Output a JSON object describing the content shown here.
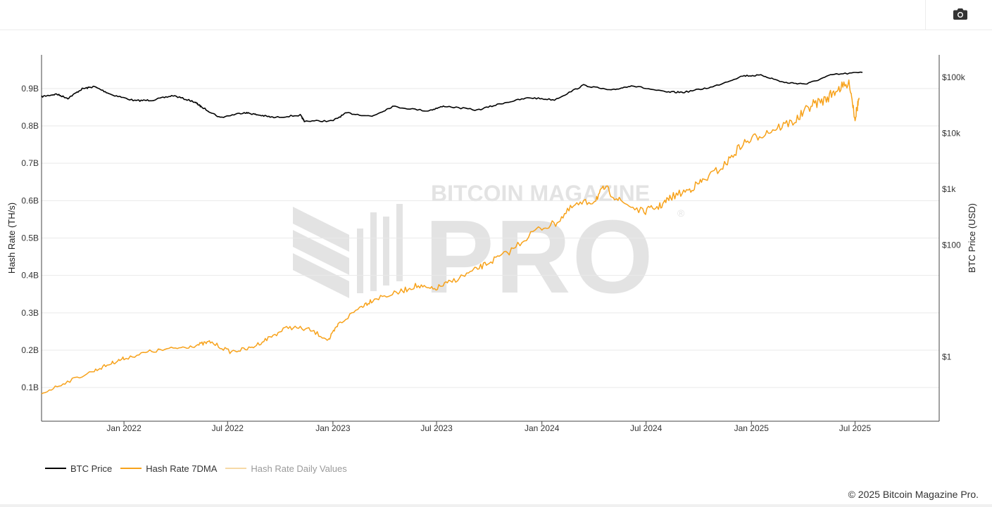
{
  "toolbar": {
    "camera_icon": "camera-icon"
  },
  "watermark": {
    "line1": "BITCOIN MAGAZINE",
    "line2": "PRO",
    "reg": "®"
  },
  "legend": [
    {
      "label": "BTC Price",
      "color": "#000000"
    },
    {
      "label": "Hash Rate 7DMA",
      "color": "#f7a21b"
    },
    {
      "label": "Hash Rate Daily Values",
      "color": "#f6d9a6"
    }
  ],
  "footer": {
    "copyright": "© 2025 Bitcoin Magazine Pro."
  },
  "chart_data": {
    "type": "line",
    "title": "",
    "xlabel": "",
    "ylabel_left": "Hash Rate (TH/s)",
    "ylabel_right": "BTC Price (USD)",
    "x_range": [
      "2021-08-10",
      "2025-11-25"
    ],
    "x_ticks": [
      {
        "date": "2022-01-01",
        "label": "Jan 2022"
      },
      {
        "date": "2022-07-01",
        "label": "Jul 2022"
      },
      {
        "date": "2023-01-01",
        "label": "Jan 2023"
      },
      {
        "date": "2023-07-01",
        "label": "Jul 2023"
      },
      {
        "date": "2024-01-01",
        "label": "Jan 2024"
      },
      {
        "date": "2024-07-01",
        "label": "Jul 2024"
      },
      {
        "date": "2025-01-01",
        "label": "Jan 2025"
      },
      {
        "date": "2025-07-01",
        "label": "Jul 2025"
      }
    ],
    "y_left": {
      "range": [
        0.01,
        0.99
      ],
      "ticks": [
        {
          "value": 0.1,
          "label": "0.1B"
        },
        {
          "value": 0.2,
          "label": "0.2B"
        },
        {
          "value": 0.3,
          "label": "0.3B"
        },
        {
          "value": 0.4,
          "label": "0.4B"
        },
        {
          "value": 0.5,
          "label": "0.5B"
        },
        {
          "value": 0.6,
          "label": "0.6B"
        },
        {
          "value": 0.7,
          "label": "0.7B"
        },
        {
          "value": 0.8,
          "label": "0.8B"
        },
        {
          "value": 0.9,
          "label": "0.9B"
        }
      ]
    },
    "y_right": {
      "scale": "log",
      "range_log10": [
        -1.15,
        5.4
      ],
      "ticks": [
        {
          "log10": 0,
          "label": "$1"
        },
        {
          "log10": 2,
          "label": "$100"
        },
        {
          "log10": 3,
          "label": "$1k"
        },
        {
          "log10": 4,
          "label": "$10k"
        },
        {
          "log10": 5,
          "label": "$100k"
        }
      ]
    },
    "grid": true,
    "legend_position": "bottom-left",
    "series": [
      {
        "name": "BTC Price",
        "axis": "right",
        "color": "#000000",
        "points": [
          [
            "2021-08-10",
            45000
          ],
          [
            "2021-09-05",
            50000
          ],
          [
            "2021-09-25",
            42000
          ],
          [
            "2021-10-20",
            62000
          ],
          [
            "2021-11-10",
            68000
          ],
          [
            "2021-12-10",
            49000
          ],
          [
            "2022-01-20",
            38000
          ],
          [
            "2022-02-20",
            39000
          ],
          [
            "2022-03-28",
            47000
          ],
          [
            "2022-05-05",
            36000
          ],
          [
            "2022-05-15",
            30000
          ],
          [
            "2022-06-18",
            19000
          ],
          [
            "2022-07-30",
            23500
          ],
          [
            "2022-08-20",
            21500
          ],
          [
            "2022-09-20",
            19000
          ],
          [
            "2022-11-05",
            21000
          ],
          [
            "2022-11-12",
            16500
          ],
          [
            "2022-12-31",
            16500
          ],
          [
            "2023-01-25",
            23000
          ],
          [
            "2023-03-10",
            20000
          ],
          [
            "2023-04-15",
            30000
          ],
          [
            "2023-06-15",
            25000
          ],
          [
            "2023-07-15",
            30500
          ],
          [
            "2023-09-10",
            25800
          ],
          [
            "2023-10-25",
            34500
          ],
          [
            "2023-12-10",
            43000
          ],
          [
            "2024-01-23",
            39500
          ],
          [
            "2024-03-14",
            72000
          ],
          [
            "2024-05-01",
            58000
          ],
          [
            "2024-06-05",
            71000
          ],
          [
            "2024-08-05",
            54000
          ],
          [
            "2024-09-06",
            54000
          ],
          [
            "2024-10-25",
            67000
          ],
          [
            "2024-12-17",
            106000
          ],
          [
            "2025-01-20",
            108000
          ],
          [
            "2025-02-28",
            80000
          ],
          [
            "2025-04-08",
            76000
          ],
          [
            "2025-05-22",
            111000
          ],
          [
            "2025-07-14",
            122000
          ]
        ]
      },
      {
        "name": "Hash Rate 7DMA",
        "axis": "left",
        "color": "#f7a21b",
        "points": [
          [
            "2021-08-10",
            0.084
          ],
          [
            "2021-09-20",
            0.113
          ],
          [
            "2021-11-10",
            0.145
          ],
          [
            "2021-12-10",
            0.165
          ],
          [
            "2022-01-01",
            0.178
          ],
          [
            "2022-02-15",
            0.196
          ],
          [
            "2022-04-01",
            0.205
          ],
          [
            "2022-05-10",
            0.214
          ],
          [
            "2022-06-01",
            0.222
          ],
          [
            "2022-07-05",
            0.196
          ],
          [
            "2022-08-10",
            0.205
          ],
          [
            "2022-09-10",
            0.232
          ],
          [
            "2022-10-15",
            0.262
          ],
          [
            "2022-11-20",
            0.255
          ],
          [
            "2022-12-25",
            0.228
          ],
          [
            "2023-01-10",
            0.268
          ],
          [
            "2023-02-20",
            0.318
          ],
          [
            "2023-03-15",
            0.338
          ],
          [
            "2023-04-25",
            0.354
          ],
          [
            "2023-05-25",
            0.372
          ],
          [
            "2023-06-25",
            0.362
          ],
          [
            "2023-07-25",
            0.382
          ],
          [
            "2023-09-01",
            0.41
          ],
          [
            "2023-10-01",
            0.435
          ],
          [
            "2023-11-05",
            0.463
          ],
          [
            "2023-12-20",
            0.52
          ],
          [
            "2024-01-25",
            0.54
          ],
          [
            "2024-02-25",
            0.585
          ],
          [
            "2024-04-01",
            0.6
          ],
          [
            "2024-04-20",
            0.635
          ],
          [
            "2024-05-15",
            0.6
          ],
          [
            "2024-06-25",
            0.57
          ],
          [
            "2024-07-25",
            0.585
          ],
          [
            "2024-08-15",
            0.61
          ],
          [
            "2024-09-15",
            0.63
          ],
          [
            "2024-10-10",
            0.655
          ],
          [
            "2024-11-15",
            0.695
          ],
          [
            "2024-12-15",
            0.75
          ],
          [
            "2025-01-15",
            0.775
          ],
          [
            "2025-02-15",
            0.795
          ],
          [
            "2025-03-20",
            0.815
          ],
          [
            "2025-04-15",
            0.855
          ],
          [
            "2025-05-10",
            0.87
          ],
          [
            "2025-06-01",
            0.9
          ],
          [
            "2025-06-22",
            0.91
          ],
          [
            "2025-07-01",
            0.82
          ],
          [
            "2025-07-08",
            0.875
          ]
        ]
      }
    ]
  }
}
